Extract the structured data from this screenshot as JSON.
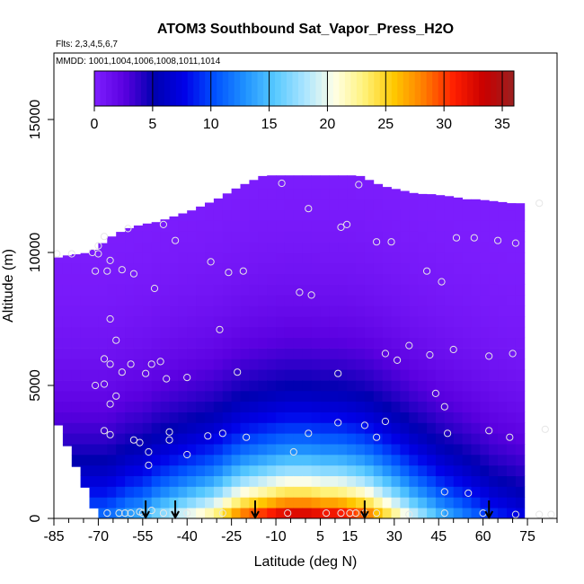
{
  "chart_data": {
    "type": "heatmap",
    "title": "ATOM3 Southbound Sat_Vapor_Press_H2O",
    "subtitle_flights": "Flts: 2,3,4,5,6,7",
    "subtitle_dates": "MMDD: 1001,1004,1006,1008,1011,1014",
    "xlabel": "Latitude (deg N)",
    "ylabel": "Altitude (m)",
    "xlim": [
      -85,
      85
    ],
    "ylim": [
      0,
      17500
    ],
    "x_ticks": [
      -85,
      -70,
      -55,
      -40,
      -25,
      -10,
      5,
      15,
      30,
      45,
      60,
      75
    ],
    "x_tick_labels": [
      "-85",
      "-70",
      "-55",
      "-40",
      "-25",
      "-10",
      "5",
      "15",
      "30",
      "45",
      "60",
      "75"
    ],
    "y_ticks": [
      0,
      5000,
      10000,
      15000
    ],
    "y_tick_labels": [
      "0",
      "5000",
      "10000",
      "15000"
    ],
    "colorbar": {
      "min": 0,
      "max": 36,
      "ticks": [
        0,
        5,
        10,
        15,
        20,
        25,
        30,
        35
      ],
      "tick_labels": [
        "0",
        "5",
        "10",
        "15",
        "20",
        "25",
        "30",
        "35"
      ],
      "colors": [
        "#7f1fff",
        "#5a00e0",
        "#0000b0",
        "#0000e8",
        "#0050ff",
        "#1e90ff",
        "#55c8ff",
        "#a8e4ff",
        "#ffffe8",
        "#fff27a",
        "#ffc800",
        "#ff7c00",
        "#ff1e00",
        "#c80000",
        "#9c2020"
      ]
    },
    "surface_cells": [
      {
        "lat": -67,
        "value": 12
      },
      {
        "lat": -64,
        "value": 13
      },
      {
        "lat": -61,
        "value": 14
      },
      {
        "lat": -58,
        "value": 15
      },
      {
        "lat": -55,
        "value": 15
      },
      {
        "lat": -52,
        "value": 17
      },
      {
        "lat": -49,
        "value": 18
      },
      {
        "lat": -46,
        "value": 19
      },
      {
        "lat": -43,
        "value": 20
      },
      {
        "lat": -40,
        "value": 21
      },
      {
        "lat": -37,
        "value": 22
      },
      {
        "lat": -34,
        "value": 23
      },
      {
        "lat": -31,
        "value": 24
      },
      {
        "lat": -28,
        "value": 26
      },
      {
        "lat": -25,
        "value": 28
      },
      {
        "lat": -22,
        "value": 30
      },
      {
        "lat": -19,
        "value": 31
      },
      {
        "lat": -16,
        "value": 32
      },
      {
        "lat": -13,
        "value": 33
      },
      {
        "lat": -10,
        "value": 34
      },
      {
        "lat": -7,
        "value": 35
      },
      {
        "lat": -4,
        "value": 35
      },
      {
        "lat": -1,
        "value": 35
      },
      {
        "lat": 2,
        "value": 35
      },
      {
        "lat": 5,
        "value": 34
      },
      {
        "lat": 8,
        "value": 34
      },
      {
        "lat": 11,
        "value": 34
      },
      {
        "lat": 14,
        "value": 33
      },
      {
        "lat": 17,
        "value": 32
      },
      {
        "lat": 20,
        "value": 31
      },
      {
        "lat": 23,
        "value": 29
      },
      {
        "lat": 26,
        "value": 27
      },
      {
        "lat": 29,
        "value": 25
      },
      {
        "lat": 32,
        "value": 23
      },
      {
        "lat": 35,
        "value": 21
      },
      {
        "lat": 38,
        "value": 19
      },
      {
        "lat": 41,
        "value": 18
      },
      {
        "lat": 44,
        "value": 16
      },
      {
        "lat": 47,
        "value": 15
      },
      {
        "lat": 50,
        "value": 14
      },
      {
        "lat": 53,
        "value": 13
      },
      {
        "lat": 56,
        "value": 12
      },
      {
        "lat": 59,
        "value": 11
      },
      {
        "lat": 62,
        "value": 10
      },
      {
        "lat": 65,
        "value": 9
      },
      {
        "lat": 68,
        "value": 9
      },
      {
        "lat": 71,
        "value": 8
      }
    ],
    "column_tops": [
      {
        "lat": -84,
        "top": 9800
      },
      {
        "lat": -80,
        "top": 9900
      },
      {
        "lat": -76,
        "top": 9950
      },
      {
        "lat": -73,
        "top": 10000
      },
      {
        "lat": -70,
        "top": 10200
      },
      {
        "lat": -67,
        "top": 10500
      },
      {
        "lat": -64,
        "top": 10700
      },
      {
        "lat": -60,
        "top": 10900
      },
      {
        "lat": -57,
        "top": 11000
      },
      {
        "lat": -53,
        "top": 11100
      },
      {
        "lat": -50,
        "top": 11150
      },
      {
        "lat": -46,
        "top": 11300
      },
      {
        "lat": -42,
        "top": 11450
      },
      {
        "lat": -38,
        "top": 11600
      },
      {
        "lat": -34,
        "top": 11800
      },
      {
        "lat": -30,
        "top": 12000
      },
      {
        "lat": -26,
        "top": 12250
      },
      {
        "lat": -22,
        "top": 12500
      },
      {
        "lat": -18,
        "top": 12700
      },
      {
        "lat": -14,
        "top": 12900
      },
      {
        "lat": -10,
        "top": 12900
      },
      {
        "lat": -6,
        "top": 12900
      },
      {
        "lat": -2,
        "top": 12900
      },
      {
        "lat": 2,
        "top": 12900
      },
      {
        "lat": 6,
        "top": 12900
      },
      {
        "lat": 10,
        "top": 12900
      },
      {
        "lat": 14,
        "top": 12900
      },
      {
        "lat": 18,
        "top": 12900
      },
      {
        "lat": 22,
        "top": 12700
      },
      {
        "lat": 26,
        "top": 12500
      },
      {
        "lat": 30,
        "top": 12400
      },
      {
        "lat": 34,
        "top": 12300
      },
      {
        "lat": 38,
        "top": 12200
      },
      {
        "lat": 42,
        "top": 12200
      },
      {
        "lat": 46,
        "top": 12150
      },
      {
        "lat": 50,
        "top": 12100
      },
      {
        "lat": 54,
        "top": 12000
      },
      {
        "lat": 58,
        "top": 12000
      },
      {
        "lat": 62,
        "top": 11950
      },
      {
        "lat": 66,
        "top": 11900
      },
      {
        "lat": 70,
        "top": 11850
      }
    ],
    "observations": [
      {
        "lat": -84,
        "alt": 9950
      },
      {
        "lat": -79,
        "alt": 9950
      },
      {
        "lat": -72,
        "alt": 10000
      },
      {
        "lat": -70,
        "alt": 9950
      },
      {
        "lat": -70,
        "alt": 10250
      },
      {
        "lat": -68,
        "alt": 10600
      },
      {
        "lat": -66,
        "alt": 9700
      },
      {
        "lat": -71,
        "alt": 9300
      },
      {
        "lat": -67,
        "alt": 9300
      },
      {
        "lat": -62,
        "alt": 9350
      },
      {
        "lat": -58,
        "alt": 9200
      },
      {
        "lat": -60,
        "alt": 10900
      },
      {
        "lat": -48,
        "alt": 11050
      },
      {
        "lat": -44,
        "alt": 10450
      },
      {
        "lat": -32,
        "alt": 9650
      },
      {
        "lat": -26,
        "alt": 9250
      },
      {
        "lat": -21,
        "alt": 9300
      },
      {
        "lat": -8,
        "alt": 12600
      },
      {
        "lat": 1,
        "alt": 11650
      },
      {
        "lat": 18,
        "alt": 12550
      },
      {
        "lat": 14,
        "alt": 11050
      },
      {
        "lat": -51,
        "alt": 8650
      },
      {
        "lat": -66,
        "alt": 7500
      },
      {
        "lat": -64,
        "alt": 6700
      },
      {
        "lat": -68,
        "alt": 6000
      },
      {
        "lat": -66,
        "alt": 5800
      },
      {
        "lat": -71,
        "alt": 5000
      },
      {
        "lat": -68,
        "alt": 5050
      },
      {
        "lat": -62,
        "alt": 5500
      },
      {
        "lat": -59,
        "alt": 5800
      },
      {
        "lat": -54,
        "alt": 5450
      },
      {
        "lat": -52,
        "alt": 5800
      },
      {
        "lat": -49,
        "alt": 5900
      },
      {
        "lat": -47,
        "alt": 5250
      },
      {
        "lat": -64,
        "alt": 4600
      },
      {
        "lat": -66,
        "alt": 4300
      },
      {
        "lat": -29,
        "alt": 7100
      },
      {
        "lat": -23,
        "alt": 5500
      },
      {
        "lat": -2,
        "alt": 8500
      },
      {
        "lat": 2,
        "alt": 8400
      },
      {
        "lat": 12,
        "alt": 10950
      },
      {
        "lat": 24,
        "alt": 10400
      },
      {
        "lat": 29,
        "alt": 10400
      },
      {
        "lat": 41,
        "alt": 9300
      },
      {
        "lat": 46,
        "alt": 8900
      },
      {
        "lat": 51,
        "alt": 10550
      },
      {
        "lat": 57,
        "alt": 10550
      },
      {
        "lat": 65,
        "alt": 10450
      },
      {
        "lat": 71,
        "alt": 10350
      },
      {
        "lat": 79,
        "alt": 11850
      },
      {
        "lat": 27,
        "alt": 6200
      },
      {
        "lat": 31,
        "alt": 5950
      },
      {
        "lat": 35,
        "alt": 6500
      },
      {
        "lat": 42,
        "alt": 6150
      },
      {
        "lat": 50,
        "alt": 6350
      },
      {
        "lat": 62,
        "alt": 6100
      },
      {
        "lat": 70,
        "alt": 6200
      },
      {
        "lat": 11,
        "alt": 5450
      },
      {
        "lat": -40,
        "alt": 5300
      },
      {
        "lat": 44,
        "alt": 4700
      },
      {
        "lat": 47,
        "alt": 4200
      },
      {
        "lat": 11,
        "alt": 3600
      },
      {
        "lat": 20,
        "alt": 3500
      },
      {
        "lat": 27,
        "alt": 3650
      },
      {
        "lat": 24,
        "alt": 3050
      },
      {
        "lat": 48,
        "alt": 3200
      },
      {
        "lat": 62,
        "alt": 3300
      },
      {
        "lat": 69,
        "alt": 3050
      },
      {
        "lat": 81,
        "alt": 3350
      },
      {
        "lat": -68,
        "alt": 3300
      },
      {
        "lat": -66,
        "alt": 3150
      },
      {
        "lat": -58,
        "alt": 2950
      },
      {
        "lat": -56,
        "alt": 2850
      },
      {
        "lat": -46,
        "alt": 3250
      },
      {
        "lat": -46,
        "alt": 2950
      },
      {
        "lat": -33,
        "alt": 3100
      },
      {
        "lat": -28,
        "alt": 3200
      },
      {
        "lat": -20,
        "alt": 3050
      },
      {
        "lat": 1,
        "alt": 3200
      },
      {
        "lat": -53,
        "alt": 2500
      },
      {
        "lat": -53,
        "alt": 2000
      },
      {
        "lat": -40,
        "alt": 2400
      },
      {
        "lat": -4,
        "alt": 2500
      },
      {
        "lat": 47,
        "alt": 1000
      },
      {
        "lat": 55,
        "alt": 950
      },
      {
        "lat": -67,
        "alt": 200
      },
      {
        "lat": -63,
        "alt": 200
      },
      {
        "lat": -61,
        "alt": 200
      },
      {
        "lat": -59,
        "alt": 200
      },
      {
        "lat": -56,
        "alt": 250
      },
      {
        "lat": -55,
        "alt": 200
      },
      {
        "lat": -52,
        "alt": 300
      },
      {
        "lat": -48,
        "alt": 200
      },
      {
        "lat": -40,
        "alt": 200
      },
      {
        "lat": -28,
        "alt": 200
      },
      {
        "lat": -6,
        "alt": 200
      },
      {
        "lat": 7,
        "alt": 200
      },
      {
        "lat": 12,
        "alt": 200
      },
      {
        "lat": 15,
        "alt": 200
      },
      {
        "lat": 17,
        "alt": 200
      },
      {
        "lat": 20,
        "alt": 200
      },
      {
        "lat": 24,
        "alt": 200
      },
      {
        "lat": 35,
        "alt": 150
      },
      {
        "lat": 47,
        "alt": 200
      },
      {
        "lat": 60,
        "alt": 200
      },
      {
        "lat": 71,
        "alt": 150
      },
      {
        "lat": 79,
        "alt": 150
      },
      {
        "lat": 83,
        "alt": 150
      }
    ],
    "arrow_latitudes": [
      -54,
      -44,
      -17,
      20,
      62
    ],
    "marker_color": "#e6e6e6",
    "arrow_color": "#000000",
    "axis_color": "#000000"
  }
}
